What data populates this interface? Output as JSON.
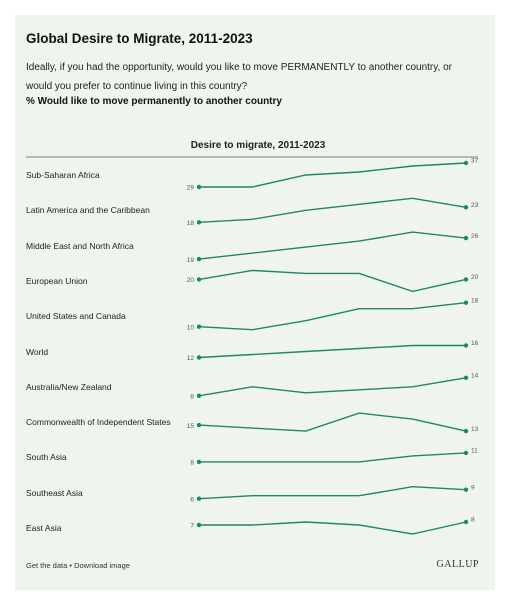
{
  "chart_data": {
    "type": "line",
    "title": "Global Desire to Migrate, 2011-2023",
    "subtitle": "Ideally, if you had the opportunity, would you like to move PERMANENTLY to another country, or would you prefer to continue living in this country?",
    "measure": "% Would like to move permanently to another country",
    "panel_title": "Desire to migrate, 2011-2023",
    "color": "#1e8a57",
    "series": [
      {
        "name": "Sub-Saharan Africa",
        "values": [
          29,
          29,
          33,
          34,
          36,
          37
        ]
      },
      {
        "name": "Latin America and the Caribbean",
        "values": [
          18,
          19,
          22,
          24,
          26,
          23
        ]
      },
      {
        "name": "Middle East and North Africa",
        "values": [
          19,
          21,
          23,
          25,
          28,
          26
        ]
      },
      {
        "name": "European Union",
        "values": [
          20,
          23,
          22,
          22,
          16,
          20
        ]
      },
      {
        "name": "United States and Canada",
        "values": [
          10,
          9,
          12,
          16,
          16,
          18
        ]
      },
      {
        "name": "World",
        "values": [
          12,
          13,
          14,
          15,
          16,
          16
        ]
      },
      {
        "name": "Australia/New Zealand",
        "values": [
          8,
          11,
          9,
          10,
          11,
          14
        ]
      },
      {
        "name": "Commonwealth of Independent States",
        "values": [
          15,
          14,
          13,
          19,
          17,
          13
        ]
      },
      {
        "name": "South Asia",
        "values": [
          8,
          8,
          8,
          8,
          10,
          11
        ]
      },
      {
        "name": "Southeast Asia",
        "values": [
          6,
          7,
          7,
          7,
          10,
          9
        ]
      },
      {
        "name": "East Asia",
        "values": [
          7,
          7,
          8,
          7,
          4,
          8
        ]
      }
    ]
  },
  "footer": {
    "links": "Get the data • Download image",
    "brand": "GALLUP"
  }
}
